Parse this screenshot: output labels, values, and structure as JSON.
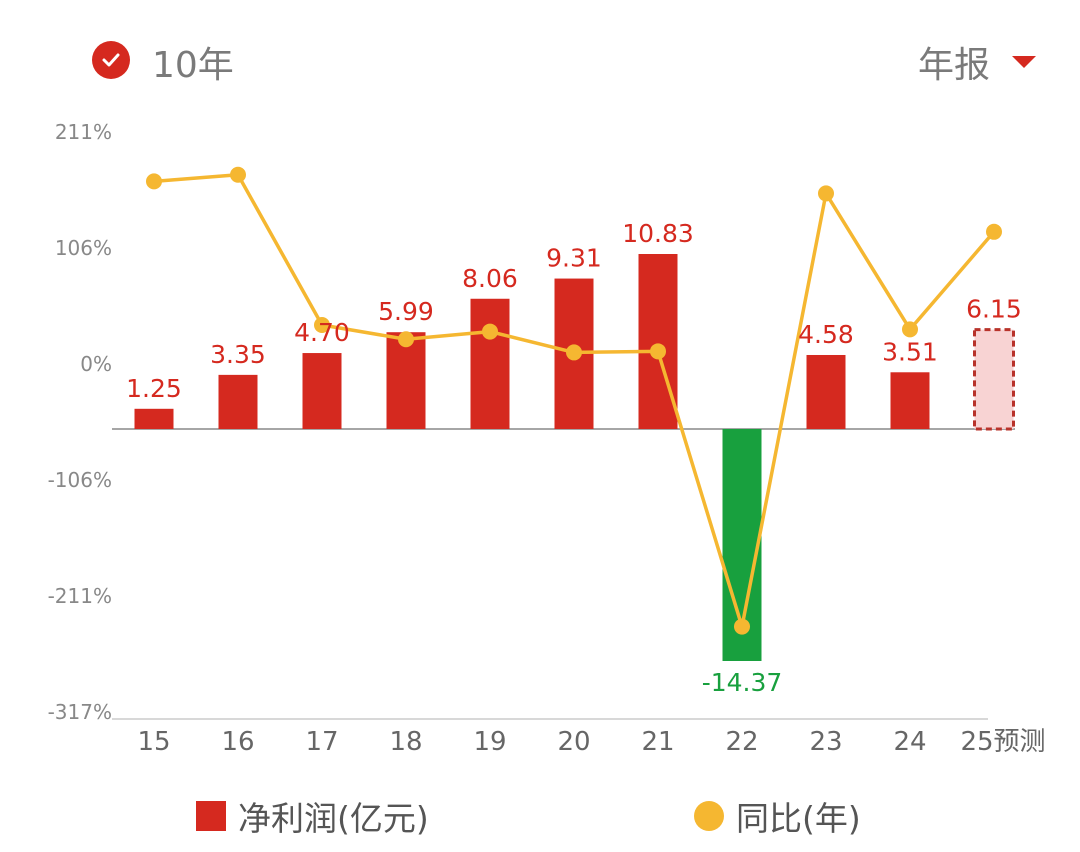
{
  "header": {
    "range_label": "10年",
    "period_label": "年报",
    "check_icon": "check-circle-icon",
    "dropdown_icon": "triangle-down-icon",
    "accent": "#d5291f"
  },
  "legend": {
    "bar_label": "净利润(亿元)",
    "line_label": "同比(年)"
  },
  "chart_data": {
    "type": "bar",
    "categories": [
      "15",
      "16",
      "17",
      "18",
      "19",
      "20",
      "21",
      "22",
      "23",
      "24",
      "25预测"
    ],
    "y_ticks": [
      "211%",
      "106%",
      "0%",
      "-106%",
      "-211%",
      "-317%"
    ],
    "series": [
      {
        "name": "净利润(亿元)",
        "type": "bar",
        "values": [
          1.25,
          3.35,
          4.7,
          5.99,
          8.06,
          9.31,
          10.83,
          -14.37,
          4.58,
          3.51,
          6.15
        ],
        "labels": [
          "1.25",
          "3.35",
          "4.70",
          "5.99",
          "8.06",
          "9.31",
          "10.83",
          "-14.37",
          "4.58",
          "3.51",
          "6.15"
        ],
        "forecast_last": true
      },
      {
        "name": "同比(年)",
        "type": "line",
        "values": [
          166,
          172,
          35,
          22,
          29,
          10,
          11,
          -240,
          155,
          31,
          120
        ]
      }
    ],
    "bar_ylim": [
      -14.37,
      10.83
    ],
    "line_ylim": [
      -317,
      211
    ],
    "colors": {
      "positive": "#d5291f",
      "negative": "#18a03e",
      "forecast_fill": "#f8d3d3",
      "line": "#f5b731",
      "positive_label": "#d5291f",
      "negative_label": "#18a03e",
      "tick": "#888888",
      "axis": "#888888"
    },
    "grid": false,
    "legend_position": "bottom"
  }
}
